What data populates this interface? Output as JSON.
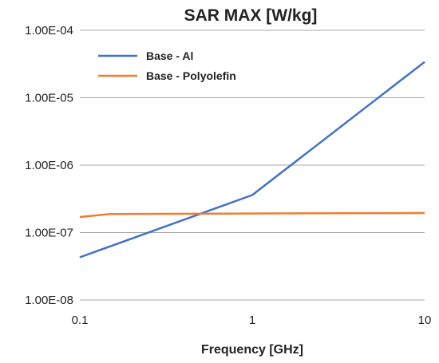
{
  "chart_data": {
    "type": "line",
    "title": "SAR MAX [W/kg]",
    "xlabel": "Frequency [GHz]",
    "ylabel": "",
    "x_scale": "log",
    "y_scale": "log",
    "xlim": [
      0.1,
      10
    ],
    "ylim": [
      1e-08,
      0.0001
    ],
    "x_ticks": [
      0.1,
      1,
      10
    ],
    "x_tick_labels": [
      "0.1",
      "1",
      "10"
    ],
    "y_ticks": [
      1e-08,
      1e-07,
      1e-06,
      1e-05,
      0.0001
    ],
    "y_tick_labels": [
      "1.00E-08",
      "1.00E-07",
      "1.00E-06",
      "1.00E-05",
      "1.00E-04"
    ],
    "grid": "horizontal",
    "legend_position": "top-left",
    "series": [
      {
        "name": "Base - Al",
        "color": "#4472C4",
        "x": [
          0.1,
          1,
          10
        ],
        "y": [
          4.3e-08,
          3.6e-07,
          3.4e-05
        ]
      },
      {
        "name": "Base - Polyolefin",
        "color": "#ED7D31",
        "x": [
          0.1,
          0.15,
          1,
          10
        ],
        "y": [
          1.7e-07,
          1.88e-07,
          1.92e-07,
          1.95e-07
        ]
      }
    ]
  }
}
